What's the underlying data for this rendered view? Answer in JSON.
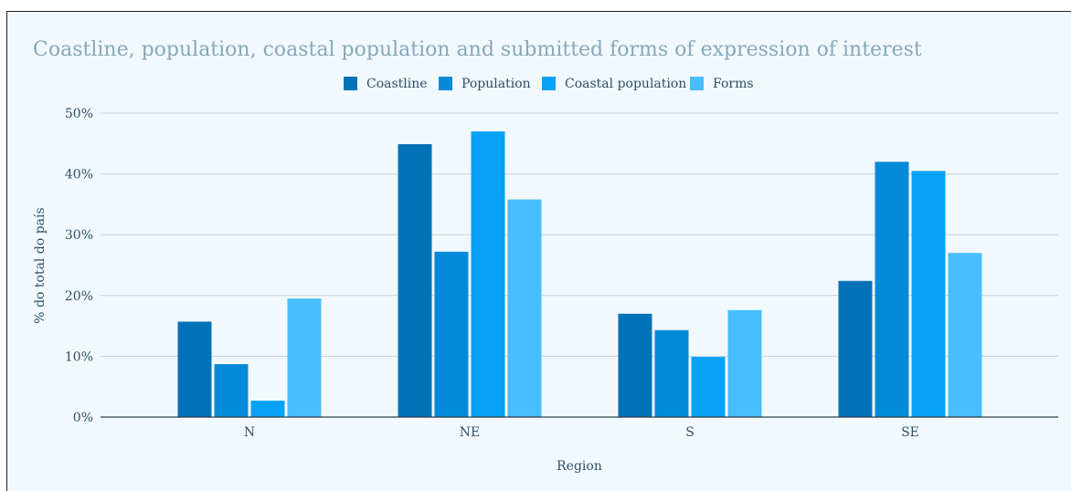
{
  "chart_data": {
    "type": "bar",
    "title": "Coastline, population, coastal population and submitted forms of expression of interest",
    "xlabel": "Region",
    "ylabel": "% do total do país",
    "categories": [
      "N",
      "NE",
      "S",
      "SE"
    ],
    "series": [
      {
        "name": "Coastline",
        "values": [
          15.7,
          44.9,
          17.0,
          22.4
        ]
      },
      {
        "name": "Population",
        "values": [
          8.7,
          27.2,
          14.3,
          42.0
        ]
      },
      {
        "name": "Coastal population",
        "values": [
          2.7,
          47.0,
          9.9,
          40.5
        ]
      },
      {
        "name": "Forms",
        "values": [
          19.5,
          35.8,
          17.6,
          27.0
        ]
      }
    ],
    "ylim": [
      0,
      50
    ],
    "yticks": [
      0,
      10,
      20,
      30,
      40,
      50
    ],
    "ytick_labels": [
      "0%",
      "10%",
      "20%",
      "30%",
      "40%",
      "50%"
    ],
    "grid": true,
    "legend_position": "top-center",
    "colors": {
      "Coastline": "#0272b8",
      "Population": "#028ad9",
      "Coastal population": "#05a2f6",
      "Forms": "#48befc",
      "title": "#86a9b8",
      "text": "#2d4f63",
      "grid": "#c3d1da",
      "axis": "#2d3d45",
      "background": "#f2f9fe"
    }
  }
}
